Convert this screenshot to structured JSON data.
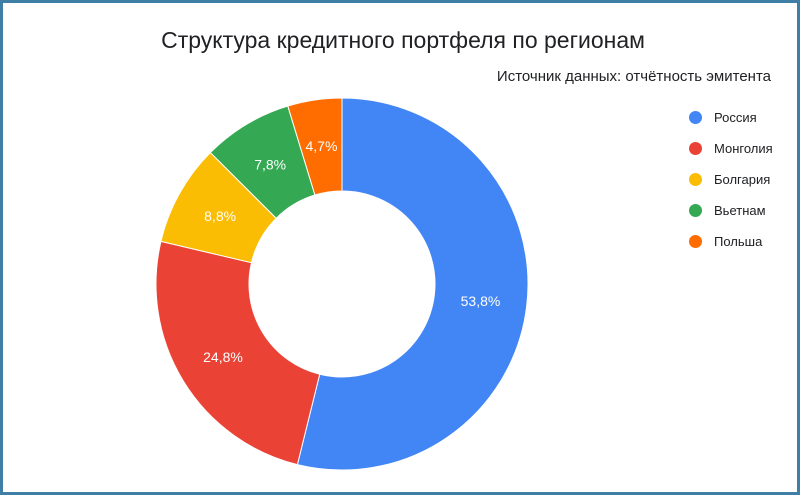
{
  "chart_data": {
    "type": "pie",
    "donut": true,
    "title": "Структура кредитного портфеля по регионам",
    "subtitle": "Источник данных: отчётность эмитента",
    "legend_position": "right",
    "categories": [
      "Россия",
      "Монголия",
      "Болгария",
      "Вьетнам",
      "Польша"
    ],
    "values": [
      53.8,
      24.8,
      8.8,
      7.8,
      4.7
    ],
    "value_labels": [
      "53,8%",
      "24,8%",
      "8,8%",
      "7,8%",
      "4,7%"
    ],
    "colors": [
      "#4285f4",
      "#ea4335",
      "#fbbc04",
      "#34a853",
      "#ff6d01"
    ]
  }
}
